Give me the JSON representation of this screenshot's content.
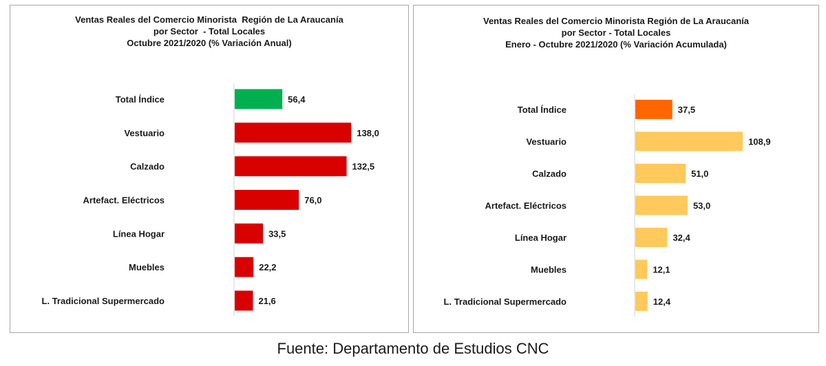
{
  "chart_data": [
    {
      "type": "bar",
      "orientation": "horizontal",
      "title": [
        "Ventas Reales del Comercio Minorista  Región de La Araucanía",
        "por Sector  - Total Locales",
        "Octubre 2021/2020 (% Variación Anual)"
      ],
      "categories": [
        "Total Índice",
        "Vestuario",
        "Calzado",
        "Artefact. Eléctricos",
        "Línea Hogar",
        "Muebles",
        "L. Tradicional Supermercado"
      ],
      "values": [
        56.4,
        138.0,
        132.5,
        76.0,
        33.5,
        22.2,
        21.6
      ],
      "value_labels": [
        "56,4",
        "138,0",
        "132,5",
        "76,0",
        "33,5",
        "22,2",
        "21,6"
      ],
      "colors": [
        "#00b050",
        "#d90000",
        "#d90000",
        "#d90000",
        "#d90000",
        "#d90000",
        "#d90000"
      ],
      "xlim": [
        0,
        150
      ],
      "grid": false,
      "legend": "none"
    },
    {
      "type": "bar",
      "orientation": "horizontal",
      "title": [
        "Ventas Reales del Comercio Minorista Región de La Araucanía",
        "por Sector - Total Locales",
        "Enero - Octubre 2021/2020 (% Variación Acumulada)"
      ],
      "categories": [
        "Total Índice",
        "Vestuario",
        "Calzado",
        "Artefact. Eléctricos",
        "Línea Hogar",
        "Muebles",
        "L. Tradicional Supermercado"
      ],
      "values": [
        37.5,
        108.9,
        51.0,
        53.0,
        32.4,
        12.1,
        12.4
      ],
      "value_labels": [
        "37,5",
        "108,9",
        "51,0",
        "53,0",
        "32,4",
        "12,1",
        "12,4"
      ],
      "colors": [
        "#ff6600",
        "#ffc95c",
        "#ffc95c",
        "#ffc95c",
        "#ffc95c",
        "#ffc95c",
        "#ffc95c"
      ],
      "xlim": [
        0,
        150
      ],
      "grid": false,
      "legend": "none"
    }
  ],
  "source_text": "Fuente: Departamento de Estudios CNC"
}
